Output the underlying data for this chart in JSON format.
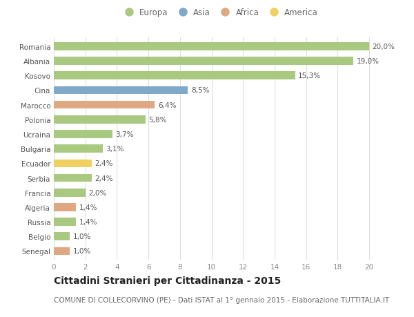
{
  "countries": [
    "Romania",
    "Albania",
    "Kosovo",
    "Cina",
    "Marocco",
    "Polonia",
    "Ucraina",
    "Bulgaria",
    "Ecuador",
    "Serbia",
    "Francia",
    "Algeria",
    "Russia",
    "Belgio",
    "Senegal"
  ],
  "values": [
    20.0,
    19.0,
    15.3,
    8.5,
    6.4,
    5.8,
    3.7,
    3.1,
    2.4,
    2.4,
    2.0,
    1.4,
    1.4,
    1.0,
    1.0
  ],
  "labels": [
    "20,0%",
    "19,0%",
    "15,3%",
    "8,5%",
    "6,4%",
    "5,8%",
    "3,7%",
    "3,1%",
    "2,4%",
    "2,4%",
    "2,0%",
    "1,4%",
    "1,4%",
    "1,0%",
    "1,0%"
  ],
  "continents": [
    "Europa",
    "Europa",
    "Europa",
    "Asia",
    "Africa",
    "Europa",
    "Europa",
    "Europa",
    "America",
    "Europa",
    "Europa",
    "Africa",
    "Europa",
    "Europa",
    "Africa"
  ],
  "colors": {
    "Europa": "#a8c97f",
    "Asia": "#7fa8c9",
    "Africa": "#e0a882",
    "America": "#f0d060"
  },
  "legend_order": [
    "Europa",
    "Asia",
    "Africa",
    "America"
  ],
  "title": "Cittadini Stranieri per Cittadinanza - 2015",
  "subtitle": "COMUNE DI COLLECORVINO (PE) - Dati ISTAT al 1° gennaio 2015 - Elaborazione TUTTITALIA.IT",
  "xlim": [
    0,
    21
  ],
  "xticks": [
    0,
    2,
    4,
    6,
    8,
    10,
    12,
    14,
    16,
    18,
    20
  ],
  "background_color": "#ffffff",
  "grid_color": "#dddddd",
  "bar_height": 0.55,
  "title_fontsize": 10,
  "subtitle_fontsize": 7.5,
  "label_fontsize": 7.5,
  "tick_fontsize": 7.5,
  "legend_fontsize": 8.5
}
